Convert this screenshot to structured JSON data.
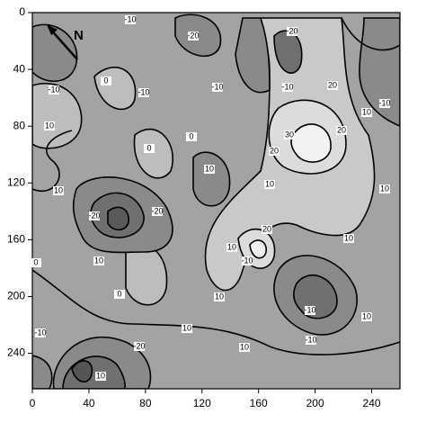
{
  "chart_data": {
    "type": "contour",
    "xlim": [
      0,
      260
    ],
    "ylim": [
      0,
      265
    ],
    "y_reversed": true,
    "xticks": [
      0,
      40,
      80,
      120,
      160,
      200,
      240
    ],
    "yticks": [
      0,
      40,
      80,
      120,
      160,
      200,
      240
    ],
    "north_label": "N",
    "contour_labels": [
      -10,
      -20,
      -20,
      -10,
      0,
      -10,
      -10,
      -10,
      20,
      -10,
      10,
      10,
      0,
      30,
      20,
      20,
      0,
      10,
      10,
      10,
      10,
      -20,
      -20,
      20,
      10,
      10,
      0,
      10,
      -10,
      0,
      10,
      -10,
      10,
      -10,
      10,
      -20,
      -10,
      10,
      10
    ]
  }
}
